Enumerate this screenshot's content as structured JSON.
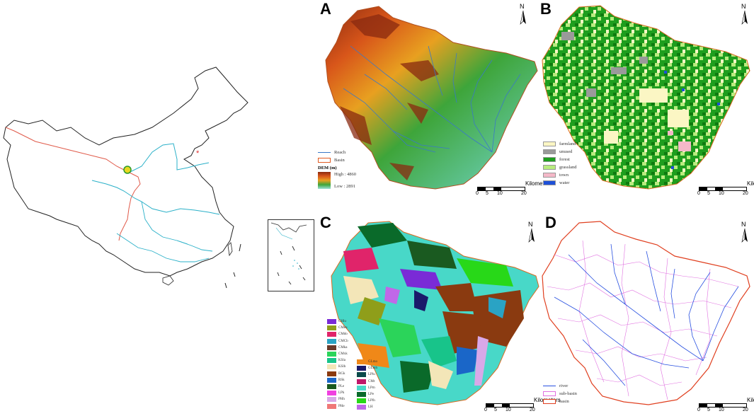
{
  "panels": {
    "A": {
      "letter": "A",
      "legend": {
        "reach": "Reach",
        "basin": "Basin",
        "dem_title": "DEM (m)",
        "high": "High : 4860",
        "low": "Low : 2891"
      }
    },
    "B": {
      "letter": "B",
      "legend": [
        {
          "label": "farmland",
          "color": "#fbf6c4"
        },
        {
          "label": "unused",
          "color": "#9a9a9a"
        },
        {
          "label": "forest",
          "color": "#1e9e1e"
        },
        {
          "label": "grassland",
          "color": "#b8ec7e"
        },
        {
          "label": "town",
          "color": "#f4b8c8"
        },
        {
          "label": "water",
          "color": "#1e50d8"
        }
      ]
    },
    "C": {
      "letter": "C",
      "soil_left": [
        {
          "label": "CHlu",
          "color": "#7a2bd6"
        },
        {
          "label": "CMeu",
          "color": "#8f9e1a"
        },
        {
          "label": "CMdo",
          "color": "#e0246a"
        },
        {
          "label": "CMCb",
          "color": "#2aa3c4"
        },
        {
          "label": "CMka",
          "color": "#6a3a2a"
        },
        {
          "label": "CMxk",
          "color": "#2bd45a"
        },
        {
          "label": "KSla",
          "color": "#18c48a"
        },
        {
          "label": "KSlh",
          "color": "#f3e6b8"
        },
        {
          "label": "RGk",
          "color": "#8a3a10"
        },
        {
          "label": "RSk",
          "color": "#1a66c8"
        },
        {
          "label": "PLe",
          "color": "#1a5a20"
        },
        {
          "label": "LPk",
          "color": "#f040e0"
        },
        {
          "label": "PHh",
          "color": "#d8a8e8"
        },
        {
          "label": "PHe",
          "color": "#f07878"
        }
      ],
      "soil_right": [
        {
          "label": "GLmo",
          "color": "#f08818"
        },
        {
          "label": "GLmh",
          "color": "#1a1a6a"
        },
        {
          "label": "LPlu",
          "color": "#0a4a4a"
        },
        {
          "label": "CMt",
          "color": "#c0186a"
        },
        {
          "label": "LPm",
          "color": "#48d8c8"
        },
        {
          "label": "LPe",
          "color": "#0a6a2a"
        },
        {
          "label": "LPlh",
          "color": "#28d818"
        },
        {
          "label": "LH",
          "color": "#c068e8"
        }
      ]
    },
    "D": {
      "letter": "D",
      "legend": [
        {
          "label": "river",
          "color": "#2850e0"
        },
        {
          "label": "sub-basin",
          "color": "#e070e0"
        },
        {
          "label": "basin",
          "color": "#e04020"
        }
      ]
    }
  },
  "north_label": "N",
  "scalebar": {
    "title": "Kilometers",
    "ticks": [
      "0",
      "5",
      "10",
      "20"
    ]
  },
  "map_marker": "*"
}
